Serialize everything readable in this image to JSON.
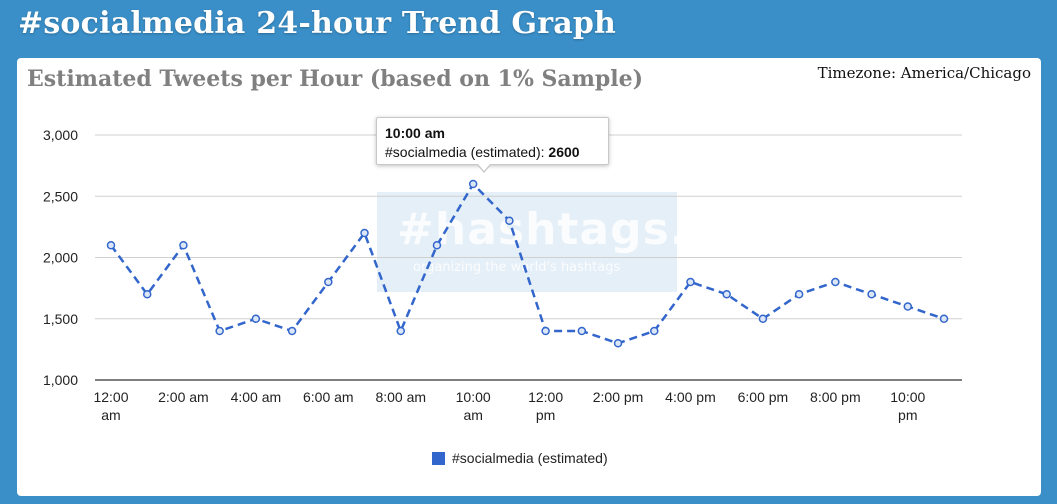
{
  "header": {
    "title": "#socialmedia 24-hour Trend Graph"
  },
  "timezone": "Timezone: America/Chicago",
  "colors": {
    "background": "#3a8fc8",
    "series": "#3366cc",
    "title": "#808080"
  },
  "watermark": {
    "logo": "#hashtags.org",
    "tagline": "organizing the world's hashtags"
  },
  "tooltip": {
    "time": "10:00 am",
    "label": "#socialmedia (estimated): ",
    "value": "2600"
  },
  "chart_data": {
    "type": "line",
    "title": "Estimated Tweets per Hour (based on 1% Sample)",
    "x": [
      "12:00 am",
      "1:00 am",
      "2:00 am",
      "3:00 am",
      "4:00 am",
      "5:00 am",
      "6:00 am",
      "7:00 am",
      "8:00 am",
      "9:00 am",
      "10:00 am",
      "11:00 am",
      "12:00 pm",
      "1:00 pm",
      "2:00 pm",
      "3:00 pm",
      "4:00 pm",
      "5:00 pm",
      "6:00 pm",
      "7:00 pm",
      "8:00 pm",
      "9:00 pm",
      "10:00 pm",
      "11:00 pm"
    ],
    "tick_labels": [
      {
        "index": 0,
        "lines": [
          "12:00",
          "am"
        ]
      },
      {
        "index": 2,
        "lines": [
          "2:00 am"
        ]
      },
      {
        "index": 4,
        "lines": [
          "4:00 am"
        ]
      },
      {
        "index": 6,
        "lines": [
          "6:00 am"
        ]
      },
      {
        "index": 8,
        "lines": [
          "8:00 am"
        ]
      },
      {
        "index": 10,
        "lines": [
          "10:00",
          "am"
        ]
      },
      {
        "index": 12,
        "lines": [
          "12:00",
          "pm"
        ]
      },
      {
        "index": 14,
        "lines": [
          "2:00 pm"
        ]
      },
      {
        "index": 16,
        "lines": [
          "4:00 pm"
        ]
      },
      {
        "index": 18,
        "lines": [
          "6:00 pm"
        ]
      },
      {
        "index": 20,
        "lines": [
          "8:00 pm"
        ]
      },
      {
        "index": 22,
        "lines": [
          "10:00",
          "pm"
        ]
      }
    ],
    "y_ticks": [
      "1,000",
      "1,500",
      "2,000",
      "2,500",
      "3,000"
    ],
    "ylim": [
      1000,
      3000
    ],
    "grid": true,
    "legend_position": "bottom",
    "series": [
      {
        "name": "#socialmedia (estimated)",
        "line_style": "dashed",
        "values": [
          2100,
          1700,
          2100,
          1400,
          1500,
          1400,
          1800,
          2200,
          1400,
          2100,
          2600,
          2300,
          1400,
          1400,
          1300,
          1400,
          1800,
          1700,
          1500,
          1700,
          1800,
          1700,
          1600,
          1500
        ]
      }
    ]
  }
}
